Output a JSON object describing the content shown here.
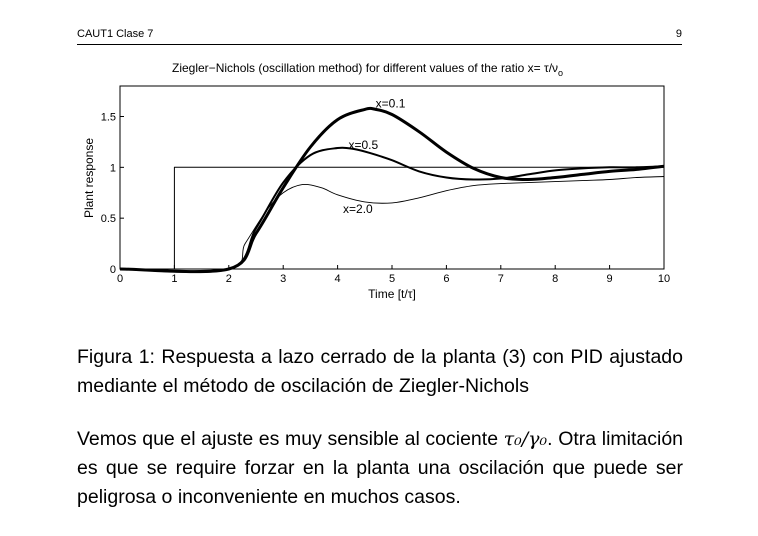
{
  "header": {
    "left": "CAUT1 Clase 7",
    "right": "9"
  },
  "chart_data": {
    "type": "line",
    "title_main": "Ziegler−Nichols (oscillation method)  for different values of the ratio x= τ/ν",
    "title_sub": "o",
    "xlabel": "Time [t/τ]",
    "ylabel": "Plant response",
    "xlim": [
      0,
      10
    ],
    "ylim": [
      0,
      1.8
    ],
    "xticks": [
      "0",
      "1",
      "2",
      "3",
      "4",
      "5",
      "6",
      "7",
      "8",
      "9",
      "10"
    ],
    "yticks": [
      "0",
      "0.5",
      "1",
      "1.5"
    ],
    "grid": false,
    "series": [
      {
        "name": "x=0.1",
        "label_at": [
          4.7,
          1.59
        ],
        "x": [
          0,
          2,
          2.5,
          3,
          3.5,
          4,
          4.5,
          4.7,
          5,
          5.5,
          6,
          6.5,
          7,
          7.5,
          8,
          8.5,
          9,
          9.5,
          10
        ],
        "y": [
          0,
          0,
          0.35,
          0.8,
          1.2,
          1.47,
          1.57,
          1.57,
          1.52,
          1.35,
          1.15,
          0.99,
          0.9,
          0.88,
          0.9,
          0.93,
          0.96,
          0.98,
          1.01
        ]
      },
      {
        "name": "x=0.5",
        "label_at": [
          4.2,
          1.18
        ],
        "x": [
          0,
          2,
          2.5,
          3,
          3.5,
          4,
          4.3,
          4.6,
          5,
          5.5,
          6,
          6.5,
          7,
          7.5,
          8,
          8.5,
          9,
          9.5,
          10
        ],
        "y": [
          0,
          0,
          0.4,
          0.85,
          1.12,
          1.19,
          1.18,
          1.14,
          1.07,
          0.96,
          0.9,
          0.88,
          0.89,
          0.93,
          0.97,
          0.99,
          1.0,
          1.0,
          1.01
        ]
      },
      {
        "name": "x=2.0",
        "label_at": [
          4.1,
          0.55
        ],
        "x": [
          0,
          2,
          2.3,
          2.7,
          3,
          3.35,
          3.7,
          4,
          4.5,
          5,
          5.5,
          6,
          6.5,
          7,
          7.5,
          8,
          8.5,
          9,
          9.5,
          10
        ],
        "y": [
          0,
          0,
          0.25,
          0.58,
          0.75,
          0.83,
          0.8,
          0.73,
          0.66,
          0.65,
          0.7,
          0.77,
          0.82,
          0.84,
          0.85,
          0.86,
          0.87,
          0.88,
          0.9,
          0.91
        ]
      },
      {
        "name": "reference",
        "x": [
          0,
          1,
          1,
          10
        ],
        "y": [
          0,
          0,
          1,
          1
        ]
      }
    ]
  },
  "caption": "Figura 1: Respuesta a lazo cerrado de la planta (3) con PID ajustado mediante el método de oscilación de Ziegler-Nichols",
  "paragraph": {
    "before": "Vemos que el ajuste es muy sensible al cociente ",
    "math": "τ₀/γ₀",
    "after": ". Otra limitación es que se require forzar en la planta una oscilación que puede ser peligrosa o inconveniente en muchos casos."
  }
}
